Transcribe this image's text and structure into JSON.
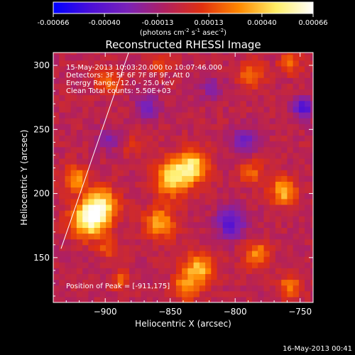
{
  "chart_data": {
    "type": "heatmap",
    "title": "Reconstructed RHESSI Image",
    "xlabel": "Heliocentric X (arcsec)",
    "ylabel": "Heliocentric Y (arcsec)",
    "xlim": [
      -940,
      -740
    ],
    "ylim": [
      115,
      310
    ],
    "x_ticks": [
      -900,
      -850,
      -800,
      -750
    ],
    "y_ticks": [
      150,
      200,
      250,
      300
    ],
    "colorbar": {
      "range": [
        -0.00066,
        0.00066
      ],
      "ticks": [
        "-0.00066",
        "-0.00040",
        "-0.00013",
        "0.00013",
        "0.00040",
        "0.00066"
      ],
      "unit_text": "(photons cm",
      "unit_exp1": "-2",
      "unit_mid": " s",
      "unit_exp2": "-1",
      "unit_mid2": " asec",
      "unit_exp3": "-2",
      "unit_close": ")",
      "colors": [
        "#0000ff",
        "#4b0fd8",
        "#7a22b8",
        "#b02060",
        "#e03010",
        "#ff8800",
        "#ffee66",
        "#ffffff"
      ]
    },
    "annotations": {
      "time": "15-May-2013 10:03:20.000 to 10:07:46.000",
      "detectors": "Detectors: 3F 5F 6F 7F 8F 9F, Att 0",
      "energy": "Energy Range: 12.0 - 25.0 keV",
      "clean": "Clean    Total counts: 5.50E+03",
      "peak": "Position of Peak = [-911,175]"
    },
    "peak": [
      -911,
      175
    ],
    "hot_regions": [
      {
        "x": -914,
        "y": 178,
        "v": 0.00066,
        "r": 14
      },
      {
        "x": -905,
        "y": 190,
        "v": 0.00045,
        "r": 12
      },
      {
        "x": -850,
        "y": 210,
        "v": 0.0005,
        "r": 14
      },
      {
        "x": -835,
        "y": 220,
        "v": 0.00048,
        "r": 12
      },
      {
        "x": -860,
        "y": 175,
        "v": 0.00038,
        "r": 12
      },
      {
        "x": -830,
        "y": 140,
        "v": 0.00042,
        "r": 12
      },
      {
        "x": -840,
        "y": 125,
        "v": 0.00035,
        "r": 10
      },
      {
        "x": -765,
        "y": 200,
        "v": 0.00045,
        "r": 10
      },
      {
        "x": -785,
        "y": 150,
        "v": 0.00035,
        "r": 10
      },
      {
        "x": -790,
        "y": 215,
        "v": 0.00025,
        "r": 9
      },
      {
        "x": -925,
        "y": 210,
        "v": 0.00035,
        "r": 10
      },
      {
        "x": -900,
        "y": 285,
        "v": 0.00028,
        "r": 9
      },
      {
        "x": -790,
        "y": 290,
        "v": 0.0003,
        "r": 10
      },
      {
        "x": -860,
        "y": 300,
        "v": 0.00022,
        "r": 8
      },
      {
        "x": -760,
        "y": 300,
        "v": 0.0003,
        "r": 8
      },
      {
        "x": -890,
        "y": 130,
        "v": 0.00022,
        "r": 8
      },
      {
        "x": -760,
        "y": 125,
        "v": 0.0003,
        "r": 9
      },
      {
        "x": -900,
        "y": 155,
        "v": 0.0002,
        "r": 8
      },
      {
        "x": -880,
        "y": 235,
        "v": 0.00015,
        "r": 8
      }
    ],
    "cold_regions": [
      {
        "x": -805,
        "y": 175,
        "v": -0.00035,
        "r": 12
      },
      {
        "x": -795,
        "y": 240,
        "v": -0.00025,
        "r": 10
      },
      {
        "x": -750,
        "y": 265,
        "v": -0.0004,
        "r": 8
      },
      {
        "x": -870,
        "y": 265,
        "v": -0.00022,
        "r": 10
      },
      {
        "x": -900,
        "y": 240,
        "v": -0.0002,
        "r": 9
      },
      {
        "x": -820,
        "y": 280,
        "v": -0.00018,
        "r": 9
      }
    ],
    "limb_line": [
      [
        -934,
        157
      ],
      [
        -882,
        310
      ]
    ],
    "legend": "none",
    "grid": false
  },
  "footer_timestamp": "16-May-2013 00:41"
}
